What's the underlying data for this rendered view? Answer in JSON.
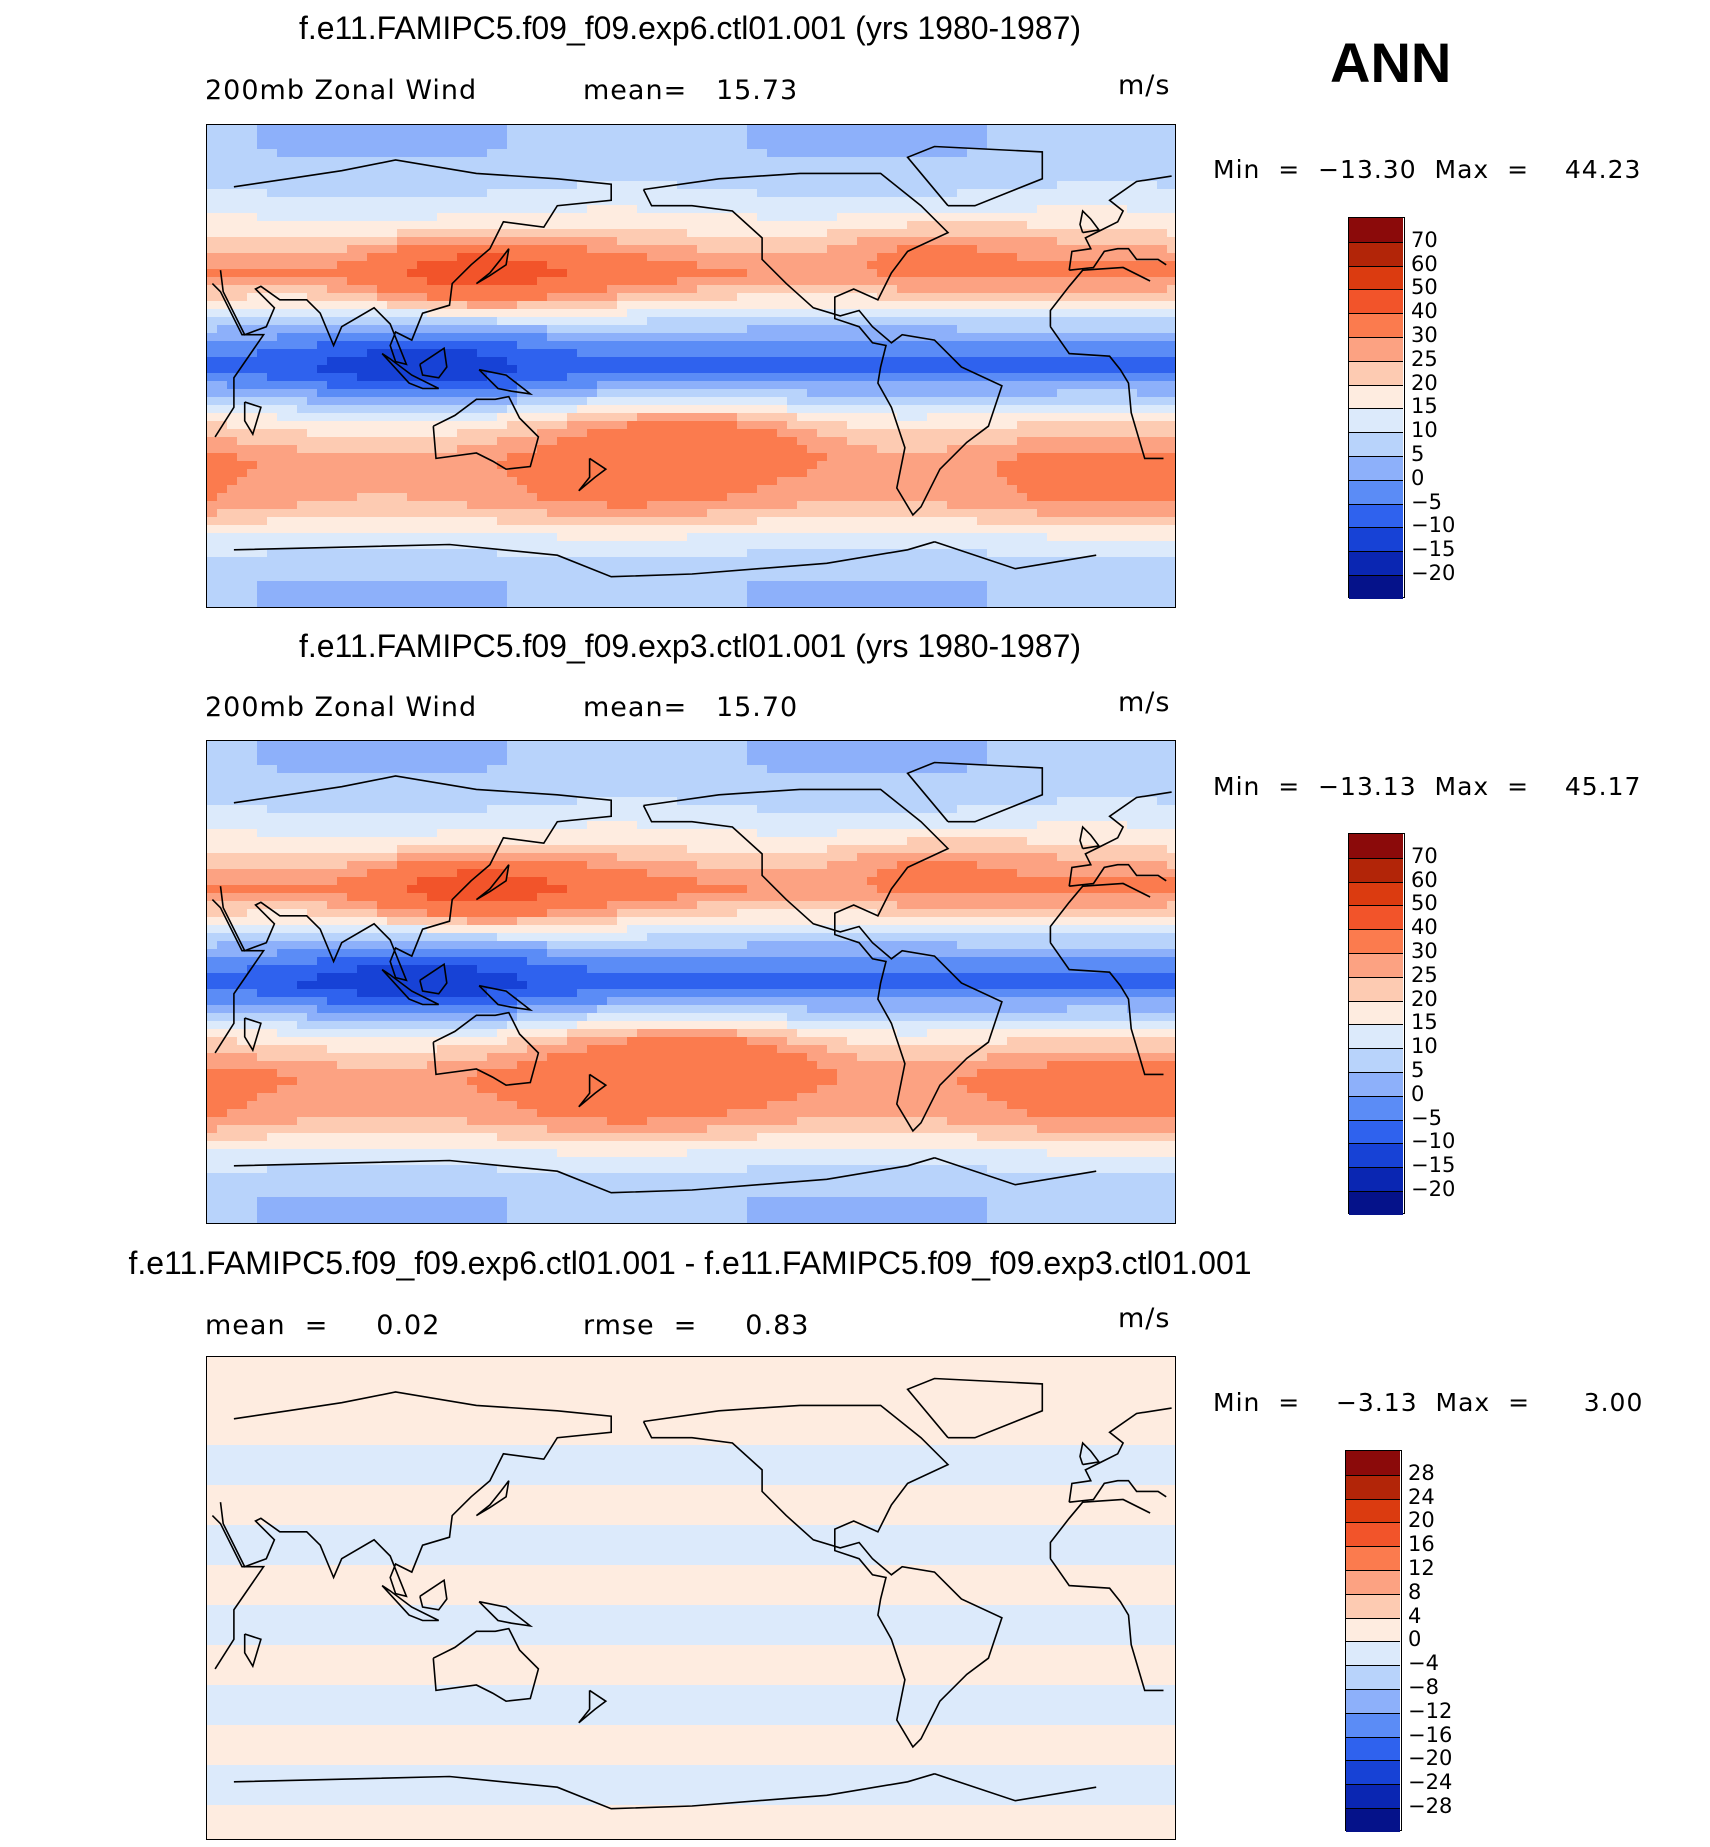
{
  "season": "ANN",
  "panels": [
    {
      "title": "f.e11.FAMIPC5.f09_f09.exp6.ctl01.001 (yrs 1980-1987)",
      "left_text": "200mb Zonal Wind",
      "mid_text": "mean=   15.73",
      "units": "m/s",
      "minmax": "Min  =  −13.30  Max  =    44.23",
      "colorbar": [
        "70",
        "60",
        "50",
        "40",
        "30",
        "25",
        "20",
        "15",
        "10",
        "5",
        "0",
        "−5",
        "−10",
        "−15",
        "−20"
      ]
    },
    {
      "title": "f.e11.FAMIPC5.f09_f09.exp3.ctl01.001 (yrs 1980-1987)",
      "left_text": "200mb Zonal Wind",
      "mid_text": "mean=   15.70",
      "units": "m/s",
      "minmax": "Min  =  −13.13  Max  =    45.17",
      "colorbar": [
        "70",
        "60",
        "50",
        "40",
        "30",
        "25",
        "20",
        "15",
        "10",
        "5",
        "0",
        "−5",
        "−10",
        "−15",
        "−20"
      ]
    },
    {
      "title": "f.e11.FAMIPC5.f09_f09.exp6.ctl01.001 - f.e11.FAMIPC5.f09_f09.exp3.ctl01.001",
      "left_text": "mean  =     0.02",
      "mid_text": "rmse  =     0.83",
      "units": "m/s",
      "minmax": "Min  =    −3.13  Max  =      3.00",
      "colorbar": [
        "28",
        "24",
        "20",
        "16",
        "12",
        "8",
        "4",
        "0",
        "−4",
        "−8",
        "−12",
        "−16",
        "−20",
        "−24",
        "−28"
      ]
    }
  ],
  "colors": {
    "main_scale": [
      "#8b0a0a",
      "#b22508",
      "#db3b10",
      "#f2542a",
      "#fb7b4e",
      "#fca282",
      "#fdcbb2",
      "#feece0",
      "#dceafb",
      "#b8d3fb",
      "#8db0fa",
      "#5b8cf6",
      "#2f62ee",
      "#1742d6",
      "#0a26b2",
      "#05128a"
    ],
    "diff_scale": [
      "#8b0a0a",
      "#b22508",
      "#db3b10",
      "#f2542a",
      "#fb7b4e",
      "#fca282",
      "#fdcbb2",
      "#feece0",
      "#dceafb",
      "#b8d3fb",
      "#8db0fa",
      "#5b8cf6",
      "#2f62ee",
      "#1742d6",
      "#0a26b2",
      "#05128a"
    ]
  },
  "chart_data": [
    {
      "type": "heatmap",
      "title": "f.e11.FAMIPC5.f09_f09.exp6.ctl01.001 (yrs 1980-1987)",
      "variable": "200mb Zonal Wind",
      "units": "m/s",
      "mean": 15.73,
      "min": -13.3,
      "max": 44.23,
      "contour_levels": [
        -20,
        -15,
        -10,
        -5,
        0,
        5,
        10,
        15,
        20,
        25,
        30,
        40,
        50,
        60,
        70
      ],
      "zonal_bands": [
        {
          "lat": 80,
          "value": 5
        },
        {
          "lat": 65,
          "value": 10
        },
        {
          "lat": 50,
          "value": 18
        },
        {
          "lat": 35,
          "value": 30
        },
        {
          "lat": 20,
          "value": 12
        },
        {
          "lat": 10,
          "value": 0
        },
        {
          "lat": 0,
          "value": -8
        },
        {
          "lat": -10,
          "value": 5
        },
        {
          "lat": -20,
          "value": 18
        },
        {
          "lat": -35,
          "value": 30
        },
        {
          "lat": -50,
          "value": 28
        },
        {
          "lat": -65,
          "value": 12
        },
        {
          "lat": -80,
          "value": 5
        }
      ],
      "map_features": [
        {
          "lon": 130,
          "lat": 35,
          "value": 45
        },
        {
          "lon": 110,
          "lat": 0,
          "value": -13
        },
        {
          "lon": -150,
          "lat": -30,
          "value": 40
        },
        {
          "lon": -60,
          "lat": 40,
          "value": 32
        }
      ]
    },
    {
      "type": "heatmap",
      "title": "f.e11.FAMIPC5.f09_f09.exp3.ctl01.001 (yrs 1980-1987)",
      "variable": "200mb Zonal Wind",
      "units": "m/s",
      "mean": 15.7,
      "min": -13.13,
      "max": 45.17,
      "contour_levels": [
        -20,
        -15,
        -10,
        -5,
        0,
        5,
        10,
        15,
        20,
        25,
        30,
        40,
        50,
        60,
        70
      ],
      "zonal_bands": [
        {
          "lat": 80,
          "value": 5
        },
        {
          "lat": 65,
          "value": 10
        },
        {
          "lat": 50,
          "value": 18
        },
        {
          "lat": 35,
          "value": 30
        },
        {
          "lat": 20,
          "value": 12
        },
        {
          "lat": 10,
          "value": 0
        },
        {
          "lat": 0,
          "value": -9
        },
        {
          "lat": -10,
          "value": 5
        },
        {
          "lat": -20,
          "value": 18
        },
        {
          "lat": -35,
          "value": 32
        },
        {
          "lat": -50,
          "value": 28
        },
        {
          "lat": -65,
          "value": 12
        },
        {
          "lat": -80,
          "value": 5
        }
      ],
      "map_features": [
        {
          "lon": 130,
          "lat": 35,
          "value": 45
        },
        {
          "lon": 110,
          "lat": 0,
          "value": -13
        },
        {
          "lon": -150,
          "lat": -30,
          "value": 40
        },
        {
          "lon": -60,
          "lat": 40,
          "value": 32
        }
      ]
    },
    {
      "type": "heatmap",
      "title": "f.e11.FAMIPC5.f09_f09.exp6.ctl01.001 - f.e11.FAMIPC5.f09_f09.exp3.ctl01.001",
      "units": "m/s",
      "mean": 0.02,
      "rmse": 0.83,
      "min": -3.13,
      "max": 3.0,
      "contour_levels": [
        -28,
        -24,
        -20,
        -16,
        -12,
        -8,
        -4,
        0,
        4,
        8,
        12,
        16,
        20,
        24,
        28
      ],
      "zonal_bands": [
        {
          "lat": 80,
          "value": 1
        },
        {
          "lat": 65,
          "value": 1
        },
        {
          "lat": 50,
          "value": -1
        },
        {
          "lat": 35,
          "value": 1
        },
        {
          "lat": 20,
          "value": -1
        },
        {
          "lat": 5,
          "value": 1
        },
        {
          "lat": -10,
          "value": -1
        },
        {
          "lat": -25,
          "value": 1
        },
        {
          "lat": -40,
          "value": -1
        },
        {
          "lat": -55,
          "value": 1
        },
        {
          "lat": -70,
          "value": -1
        },
        {
          "lat": -85,
          "value": 1
        }
      ]
    }
  ]
}
